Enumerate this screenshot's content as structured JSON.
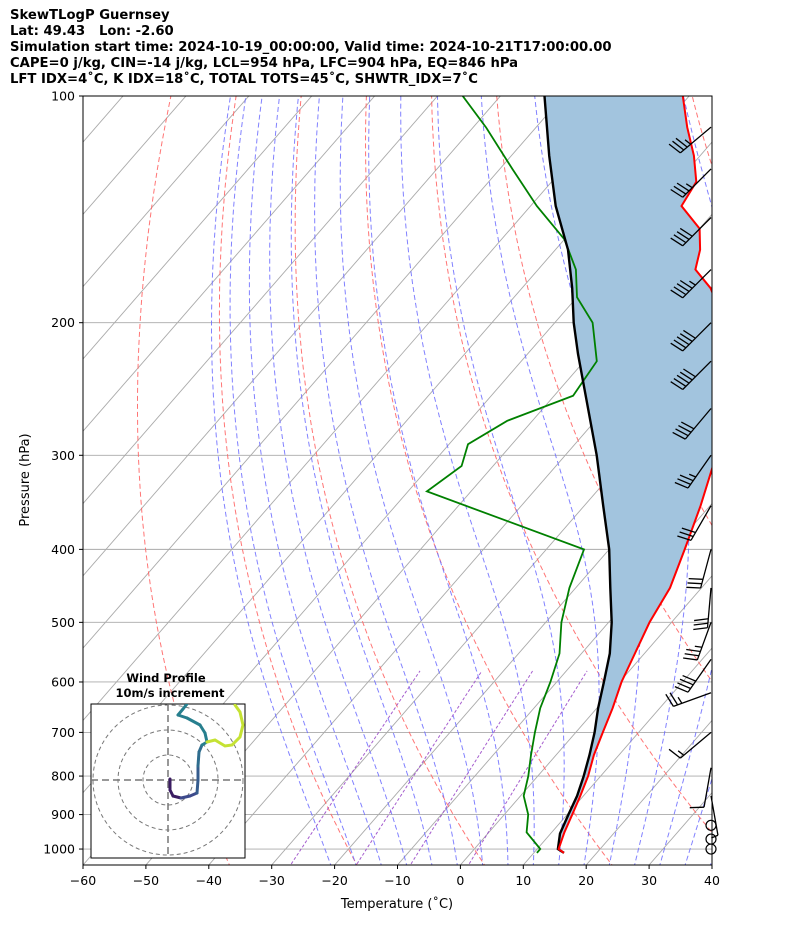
{
  "header": {
    "line1": "SkewTLogP Guernsey",
    "line2": "Lat: 49.43   Lon: -2.60",
    "line3": "Simulation start time: 2024-10-19_00:00:00, Valid time: 2024-10-21T17:00:00.00",
    "line4": "CAPE=0 j/kg, CIN=-14 j/kg, LCL=954 hPa, LFC=904 hPa, EQ=846 hPa",
    "line5": "LFT IDX=4˚C, K IDX=18˚C, TOTAL TOTS=45˚C, SHWTR_IDX=7˚C"
  },
  "chart_data": {
    "type": "line",
    "skew_t": true,
    "xlabel": "Temperature (˚C)",
    "ylabel": "Pressure (hPa)",
    "xlim": [
      -60,
      40
    ],
    "ylim": [
      1050,
      100
    ],
    "y_scale": "log",
    "grid": true,
    "x_ticks": [
      "−60",
      "−50",
      "−40",
      "−30",
      "−20",
      "−10",
      "0",
      "10",
      "20",
      "30",
      "40"
    ],
    "y_ticks": [
      "100",
      "200",
      "300",
      "400",
      "500",
      "600",
      "700",
      "800",
      "900",
      "1000"
    ],
    "colors": {
      "temperature": "#ff0000",
      "dewpoint": "#008000",
      "parcel": "#000000",
      "cape_fill": "#a2c4de",
      "dry_adiabat": "#ff6666",
      "moist_adiabat": "#6b6bff",
      "mixing_ratio": "#9b4bc9",
      "isotherm": "#aaaaaa"
    },
    "series": [
      {
        "key": "temperature",
        "points": [
          [
            14.8,
            1012
          ],
          [
            13.4,
            1000
          ],
          [
            12,
            950
          ],
          [
            10.8,
            900
          ],
          [
            9.5,
            850
          ],
          [
            8,
            800
          ],
          [
            6,
            750
          ],
          [
            4.3,
            700
          ],
          [
            2.5,
            650
          ],
          [
            0.3,
            600
          ],
          [
            -1.5,
            550
          ],
          [
            -3.5,
            500
          ],
          [
            -5,
            450
          ],
          [
            -8,
            400
          ],
          [
            -11.5,
            350
          ],
          [
            -16,
            300
          ],
          [
            -21,
            250
          ],
          [
            -28,
            220
          ],
          [
            -33,
            200
          ],
          [
            -40,
            180
          ],
          [
            -45,
            170
          ],
          [
            -47,
            160
          ],
          [
            -50,
            150
          ],
          [
            -56,
            140
          ],
          [
            -57,
            130
          ],
          [
            -61,
            120
          ],
          [
            -66,
            110
          ],
          [
            -71,
            100
          ]
        ]
      },
      {
        "key": "dewpoint",
        "points": [
          [
            10.5,
            1012
          ],
          [
            10.5,
            1000
          ],
          [
            6,
            950
          ],
          [
            3.8,
            900
          ],
          [
            0.5,
            850
          ],
          [
            -1.5,
            800
          ],
          [
            -4,
            750
          ],
          [
            -6.5,
            700
          ],
          [
            -9,
            650
          ],
          [
            -11,
            600
          ],
          [
            -13.5,
            550
          ],
          [
            -17.5,
            500
          ],
          [
            -21,
            450
          ],
          [
            -24,
            400
          ],
          [
            -57,
            335
          ],
          [
            -55,
            310
          ],
          [
            -57,
            290
          ],
          [
            -54,
            270
          ],
          [
            -47,
            250
          ],
          [
            -48,
            225
          ],
          [
            -54,
            200
          ],
          [
            -60,
            185
          ],
          [
            -64,
            170
          ],
          [
            -70,
            155
          ],
          [
            -79,
            140
          ],
          [
            -88,
            125
          ],
          [
            -98,
            110
          ],
          [
            -106,
            100
          ]
        ]
      },
      {
        "key": "parcel",
        "points": [
          [
            14.8,
            1012
          ],
          [
            13.3,
            1000
          ],
          [
            11.5,
            954
          ],
          [
            10.2,
            900
          ],
          [
            9,
            850
          ],
          [
            7.3,
            800
          ],
          [
            5.3,
            750
          ],
          [
            3,
            700
          ],
          [
            0.2,
            650
          ],
          [
            -2.5,
            600
          ],
          [
            -5.5,
            550
          ],
          [
            -9.5,
            500
          ],
          [
            -14.5,
            450
          ],
          [
            -20,
            400
          ],
          [
            -27,
            350
          ],
          [
            -35,
            300
          ],
          [
            -45,
            250
          ],
          [
            -52,
            220
          ],
          [
            -57,
            200
          ],
          [
            -62,
            180
          ],
          [
            -68,
            160
          ],
          [
            -76,
            140
          ],
          [
            -84,
            120
          ],
          [
            -93,
            100
          ]
        ]
      }
    ]
  },
  "hodograph": {
    "title": "Wind Profile",
    "subtitle": "10m/s increment"
  },
  "wind_barbs": [
    {
      "p": 1000,
      "speed": 0,
      "dir": 0
    },
    {
      "p": 970,
      "speed": 0,
      "dir": 0
    },
    {
      "p": 930,
      "speed": 0,
      "dir": 0
    },
    {
      "p": 850,
      "speed": 5,
      "dir": 170
    },
    {
      "p": 780,
      "speed": 10,
      "dir": 190
    },
    {
      "p": 700,
      "speed": 15,
      "dir": 230
    },
    {
      "p": 620,
      "speed": 25,
      "dir": 250
    },
    {
      "p": 560,
      "speed": 40,
      "dir": 215
    },
    {
      "p": 500,
      "speed": 35,
      "dir": 200
    },
    {
      "p": 450,
      "speed": 30,
      "dir": 185
    },
    {
      "p": 400,
      "speed": 30,
      "dir": 195
    },
    {
      "p": 350,
      "speed": 30,
      "dir": 210
    },
    {
      "p": 300,
      "speed": 35,
      "dir": 215
    },
    {
      "p": 260,
      "speed": 40,
      "dir": 220
    },
    {
      "p": 225,
      "speed": 50,
      "dir": 225
    },
    {
      "p": 200,
      "speed": 50,
      "dir": 225
    },
    {
      "p": 170,
      "speed": 45,
      "dir": 225
    },
    {
      "p": 145,
      "speed": 40,
      "dir": 225
    },
    {
      "p": 125,
      "speed": 35,
      "dir": 225
    },
    {
      "p": 110,
      "speed": 35,
      "dir": 230
    }
  ]
}
